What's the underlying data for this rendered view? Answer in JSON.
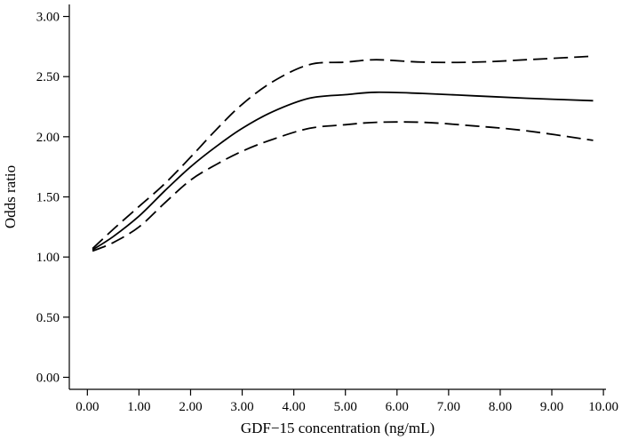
{
  "chart_data": {
    "type": "line",
    "title": "",
    "xlabel": "GDF−15 concentration (ng/mL)",
    "ylabel": "Odds ratio",
    "xlim": [
      -0.35,
      10.05
    ],
    "ylim": [
      -0.1,
      3.1
    ],
    "xticks": [
      0,
      1,
      2,
      3,
      4,
      5,
      6,
      7,
      8,
      9,
      10
    ],
    "xtick_labels": [
      "0.00",
      "1.00",
      "2.00",
      "3.00",
      "4.00",
      "5.00",
      "6.00",
      "7.00",
      "8.00",
      "9.00",
      "10.00"
    ],
    "yticks": [
      0,
      0.5,
      1,
      1.5,
      2,
      2.5,
      3
    ],
    "ytick_labels": [
      "0.00",
      "0.50",
      "1.00",
      "1.50",
      "2.00",
      "2.50",
      "3.00"
    ],
    "grid": false,
    "legend": "none",
    "series": [
      {
        "style": "solid",
        "color": "#000000",
        "x": [
          0.1,
          0.5,
          1.0,
          1.5,
          2.0,
          2.5,
          3.0,
          3.6,
          4.3,
          5.0,
          5.6,
          6.5,
          7.5,
          8.5,
          9.8
        ],
        "y": [
          1.06,
          1.17,
          1.34,
          1.55,
          1.75,
          1.92,
          2.07,
          2.21,
          2.32,
          2.35,
          2.37,
          2.36,
          2.34,
          2.32,
          2.3
        ]
      },
      {
        "style": "dashed",
        "color": "#000000",
        "x": [
          0.1,
          0.5,
          1.0,
          1.5,
          2.0,
          2.5,
          3.0,
          3.6,
          4.3,
          5.0,
          5.6,
          6.5,
          7.5,
          8.5,
          9.8
        ],
        "y": [
          1.07,
          1.23,
          1.42,
          1.61,
          1.83,
          2.06,
          2.27,
          2.46,
          2.6,
          2.62,
          2.64,
          2.62,
          2.62,
          2.64,
          2.67
        ]
      },
      {
        "style": "dashed",
        "color": "#000000",
        "x": [
          0.1,
          0.5,
          1.0,
          1.5,
          2.0,
          2.5,
          3.0,
          3.6,
          4.3,
          5.0,
          5.6,
          6.5,
          7.5,
          8.5,
          9.8
        ],
        "y": [
          1.05,
          1.12,
          1.25,
          1.45,
          1.64,
          1.77,
          1.88,
          1.98,
          2.07,
          2.1,
          2.12,
          2.12,
          2.09,
          2.05,
          1.97
        ]
      }
    ]
  }
}
